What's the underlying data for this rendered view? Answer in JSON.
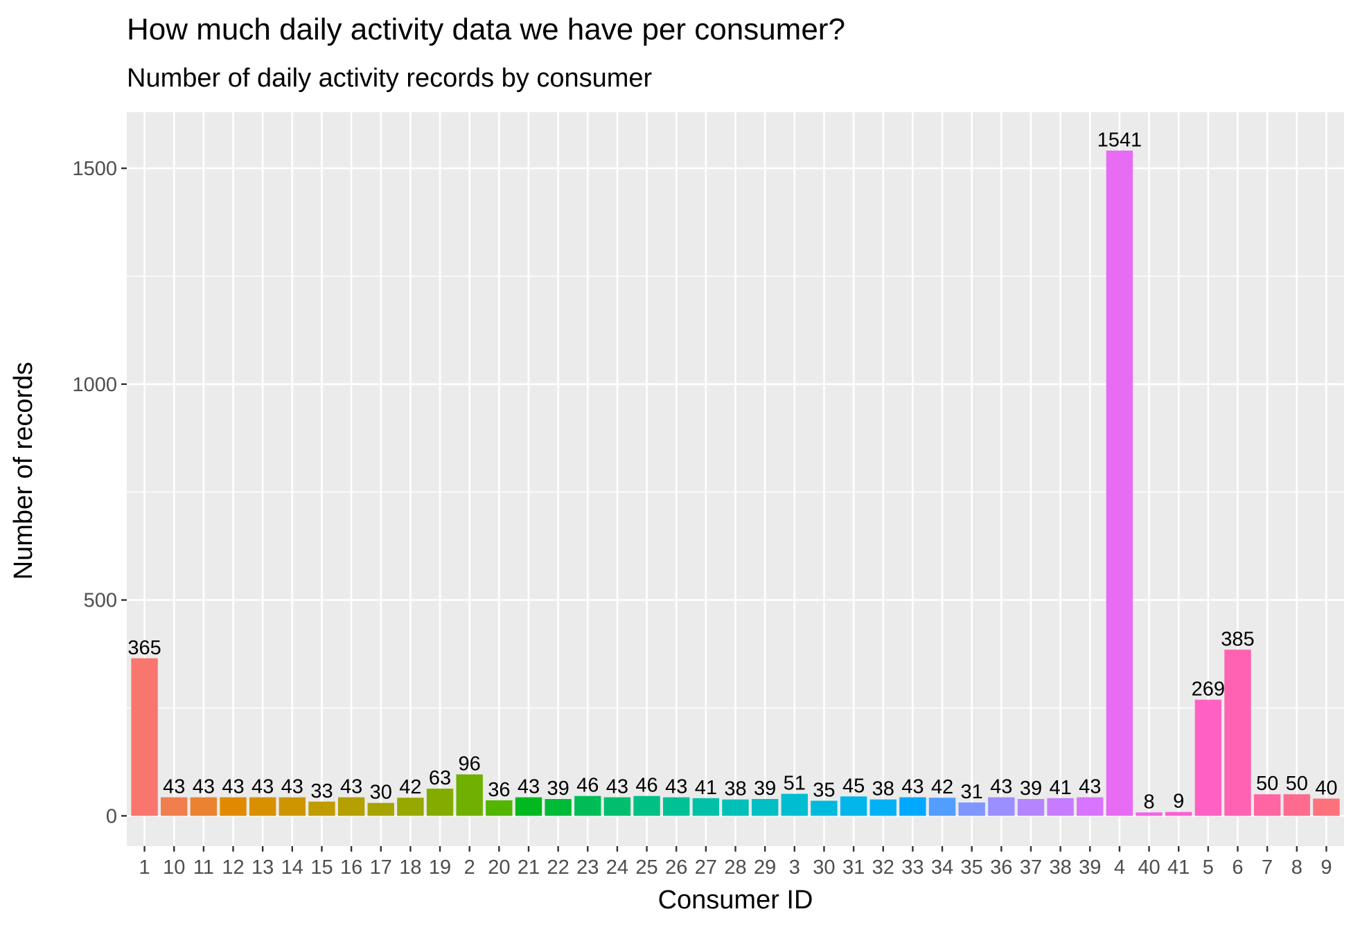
{
  "chart_data": {
    "type": "bar",
    "title": "How much daily activity data we have per consumer?",
    "subtitle": "Number of daily activity records by consumer",
    "xlabel": "Consumer ID",
    "ylabel": "Number of records",
    "ylim": [
      -70,
      1630
    ],
    "yticks": [
      0,
      500,
      1000,
      1500
    ],
    "grid": true,
    "panel_background": "#EBEBEB",
    "legend": "none",
    "categories": [
      "1",
      "10",
      "11",
      "12",
      "13",
      "14",
      "15",
      "16",
      "17",
      "18",
      "19",
      "2",
      "20",
      "21",
      "22",
      "23",
      "24",
      "25",
      "26",
      "27",
      "28",
      "29",
      "3",
      "30",
      "31",
      "32",
      "33",
      "34",
      "35",
      "36",
      "37",
      "38",
      "39",
      "4",
      "40",
      "41",
      "5",
      "6",
      "7",
      "8",
      "9"
    ],
    "values": [
      365,
      43,
      43,
      43,
      43,
      43,
      33,
      43,
      30,
      42,
      63,
      96,
      36,
      43,
      39,
      46,
      43,
      46,
      43,
      41,
      38,
      39,
      51,
      35,
      45,
      38,
      43,
      42,
      31,
      43,
      39,
      41,
      43,
      1541,
      8,
      9,
      269,
      385,
      50,
      50,
      40
    ],
    "colors": [
      "#F8766D",
      "#F17E4F",
      "#EA8331",
      "#E18A00",
      "#D89000",
      "#CD9600",
      "#C19C00",
      "#B4A000",
      "#A7A400",
      "#97A800",
      "#84AC00",
      "#6FB000",
      "#52B500",
      "#00B81F",
      "#00BA38",
      "#00BC56",
      "#00BE6D",
      "#00C083",
      "#00C196",
      "#00C1A7",
      "#00C0B8",
      "#00BFC4",
      "#00BDD2",
      "#00BADE",
      "#00B6EB",
      "#00B1F4",
      "#00A9FF",
      "#529EFF",
      "#7F96FF",
      "#9B8FFF",
      "#B385FF",
      "#C77CFF",
      "#D874FD",
      "#E76BF3",
      "#F263E7",
      "#FA62D7",
      "#FF61C3",
      "#FF62B1",
      "#FF65A3",
      "#FE6B8F",
      "#FB727C"
    ]
  }
}
